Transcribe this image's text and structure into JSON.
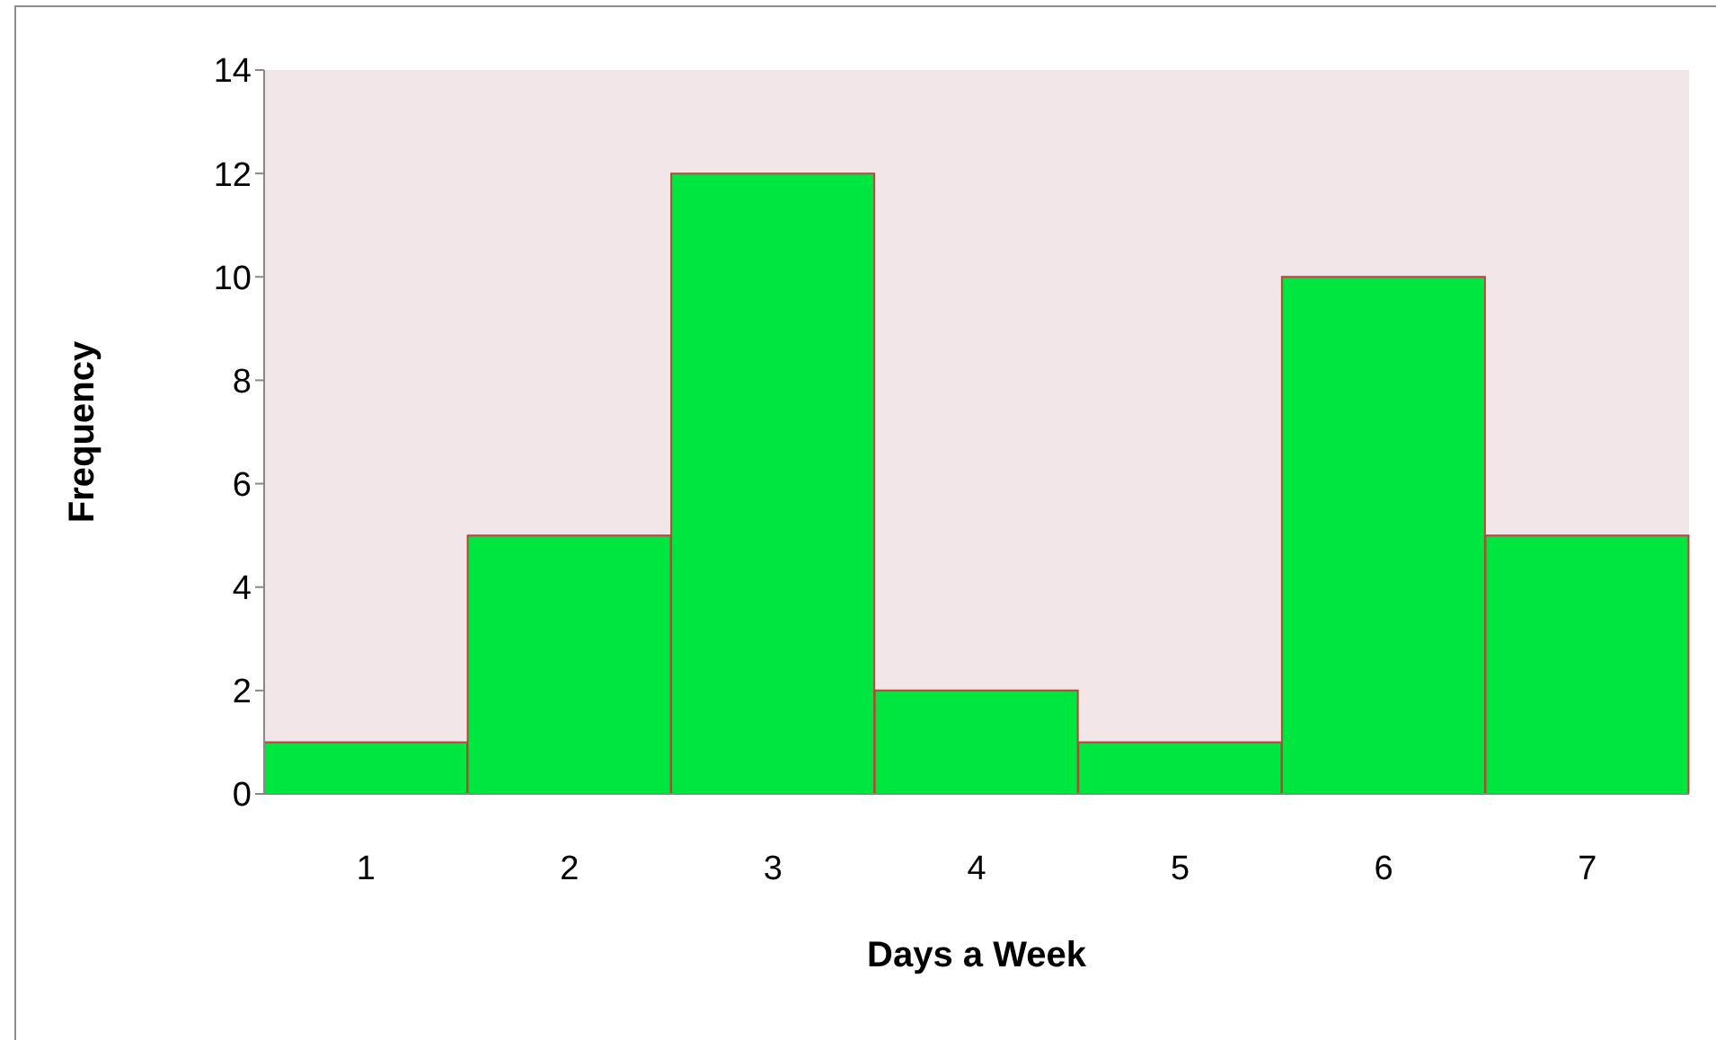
{
  "chart_data": {
    "type": "bar",
    "xlabel": "Days a Week",
    "ylabel": "Frequency",
    "categories": [
      "1",
      "2",
      "3",
      "4",
      "5",
      "6",
      "7"
    ],
    "values": [
      1,
      5,
      12,
      2,
      1,
      10,
      5
    ],
    "color": "#00e640",
    "ylim": [
      0,
      14
    ],
    "yticks": [
      0,
      2,
      4,
      6,
      8,
      10,
      12,
      14
    ],
    "grid": false
  }
}
